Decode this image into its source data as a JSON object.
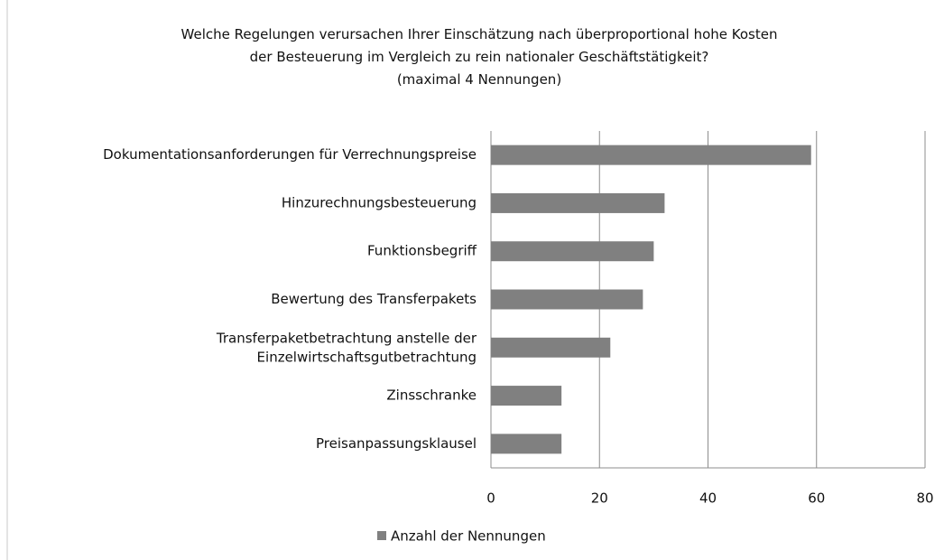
{
  "chart_data": {
    "type": "bar",
    "orientation": "horizontal",
    "title": "Welche Regelungen verursachen Ihrer Einschätzung nach überproportional hohe Kosten\nder Besteuerung im Vergleich zu rein nationaler Geschäftstätigkeit?\n(maximal 4 Nennungen)",
    "categories": [
      "Dokumentationsanforderungen für Verrechnungspreise",
      "Hinzurechnungsbesteuerung",
      "Funktionsbegriff",
      "Bewertung des Transferpakets",
      "Transferpaketbetrachtung anstelle der\nEinzelwirtschaftsgutbetrachtung",
      "Zinsschranke",
      "Preisanpassungsklausel"
    ],
    "series": [
      {
        "name": "Anzahl der Nennungen",
        "color": "#808080",
        "values": [
          59,
          32,
          30,
          28,
          22,
          13,
          13
        ]
      }
    ],
    "xlim": [
      0,
      80
    ],
    "xticks": [
      0,
      20,
      40,
      60,
      80
    ],
    "grid": true,
    "legend": "bottom"
  }
}
